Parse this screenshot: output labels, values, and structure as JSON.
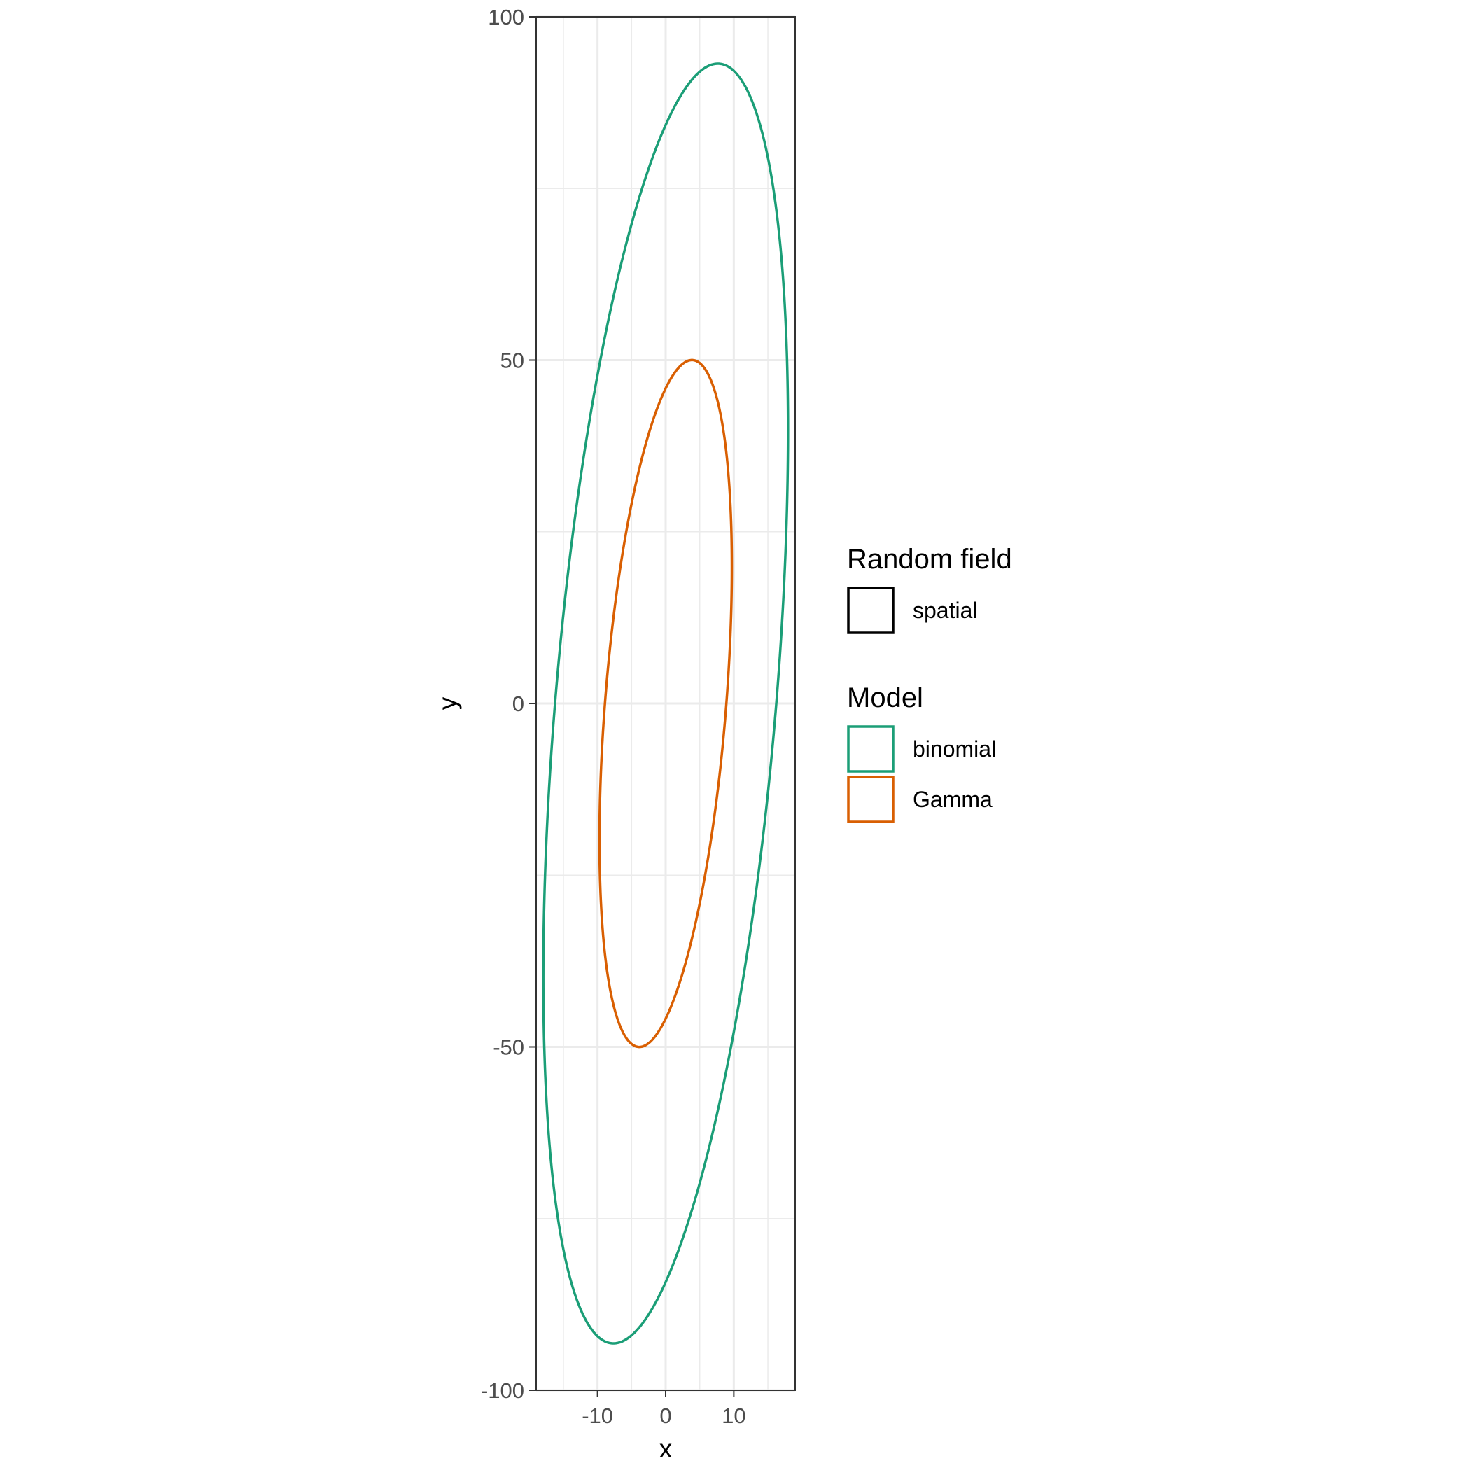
{
  "chart_data": {
    "type": "line",
    "title": "",
    "xlabel": "x",
    "ylabel": "y",
    "xlim": [
      -19,
      19
    ],
    "ylim": [
      -100,
      100
    ],
    "x_ticks": [
      -10,
      0,
      10
    ],
    "x_tick_labels": [
      "-10",
      "0",
      "10"
    ],
    "y_ticks": [
      -100,
      -50,
      0,
      50,
      100
    ],
    "y_tick_labels": [
      "-100",
      "-50",
      "0",
      "50",
      "100"
    ],
    "grid": true,
    "legend_position": "right",
    "series": [
      {
        "name": "binomial",
        "color": "#1b9e77",
        "shape": "ellipse",
        "center": [
          0,
          0
        ],
        "points": [
          [
            -17.5,
            -20
          ],
          [
            17.5,
            20
          ],
          [
            4,
            91
          ],
          [
            -4,
            -91
          ]
        ]
      },
      {
        "name": "Gamma",
        "color": "#d95f02",
        "shape": "ellipse",
        "center": [
          0,
          0
        ],
        "points": [
          [
            -9.5,
            -10
          ],
          [
            9.5,
            10
          ],
          [
            2,
            49
          ],
          [
            -2,
            -49
          ]
        ]
      }
    ],
    "legend": [
      {
        "title": "Random field",
        "items": [
          {
            "label": "spatial",
            "color": "#000000"
          }
        ]
      },
      {
        "title": "Model",
        "items": [
          {
            "label": "binomial",
            "color": "#1b9e77"
          },
          {
            "label": "Gamma",
            "color": "#d95f02"
          }
        ]
      }
    ]
  }
}
